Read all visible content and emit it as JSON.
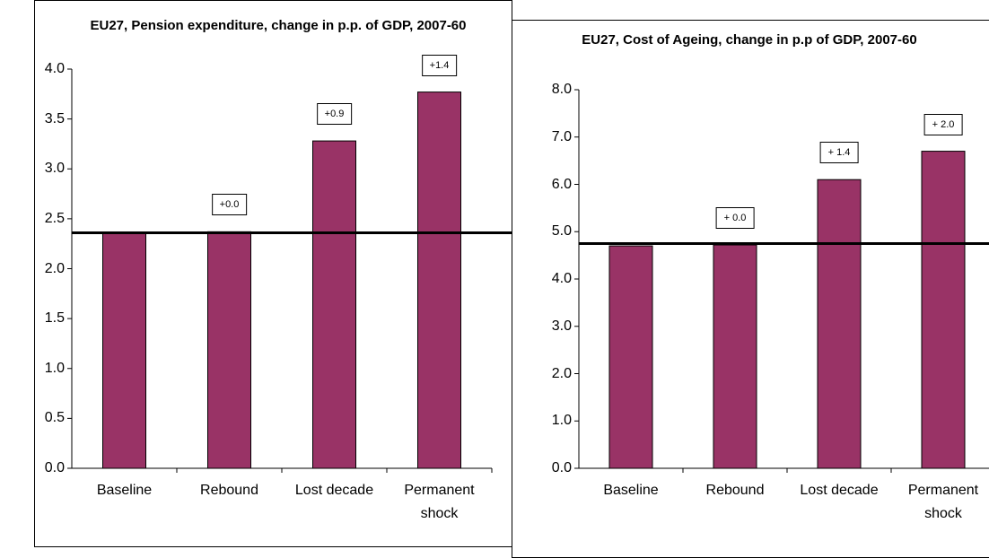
{
  "chart_data": [
    {
      "type": "bar",
      "title": "EU27, Pension expenditure, change in p.p. of GDP, 2007-60",
      "categories": [
        "Baseline",
        "Rebound",
        "Lost decade",
        "Permanent shock"
      ],
      "values": [
        2.36,
        2.37,
        3.28,
        3.77
      ],
      "annotations": [
        null,
        "+0.0",
        "+0.9",
        "+1.4"
      ],
      "reference_line": 2.36,
      "color": "#993366",
      "ylim": [
        0,
        4
      ],
      "yticks": [
        {
          "value": 0,
          "label": "0.0"
        },
        {
          "value": 0.5,
          "label": "0.5"
        },
        {
          "value": 1,
          "label": "1.0"
        },
        {
          "value": 1.5,
          "label": "1.5"
        },
        {
          "value": 2,
          "label": "2.0"
        },
        {
          "value": 2.5,
          "label": "2.5"
        },
        {
          "value": 3,
          "label": "3.0"
        },
        {
          "value": 3.5,
          "label": "3.5"
        },
        {
          "value": 4,
          "label": "4.0"
        }
      ]
    },
    {
      "type": "bar",
      "title": "EU27, Cost of Ageing, change in p.p of GDP, 2007-60",
      "categories": [
        "Baseline",
        "Rebound",
        "Lost decade",
        "Permanent shock"
      ],
      "values": [
        4.7,
        4.72,
        6.1,
        6.7
      ],
      "annotations": [
        null,
        "+ 0.0",
        "+ 1.4",
        "+ 2.0"
      ],
      "reference_line": 4.75,
      "color": "#993366",
      "ylim": [
        0,
        8
      ],
      "yticks": [
        {
          "value": 0,
          "label": "0.0"
        },
        {
          "value": 1,
          "label": "1.0"
        },
        {
          "value": 2,
          "label": "2.0"
        },
        {
          "value": 3,
          "label": "3.0"
        },
        {
          "value": 4,
          "label": "4.0"
        },
        {
          "value": 5,
          "label": "5.0"
        },
        {
          "value": 6,
          "label": "6.0"
        },
        {
          "value": 7,
          "label": "7.0"
        },
        {
          "value": 8,
          "label": "8.0"
        }
      ]
    }
  ]
}
